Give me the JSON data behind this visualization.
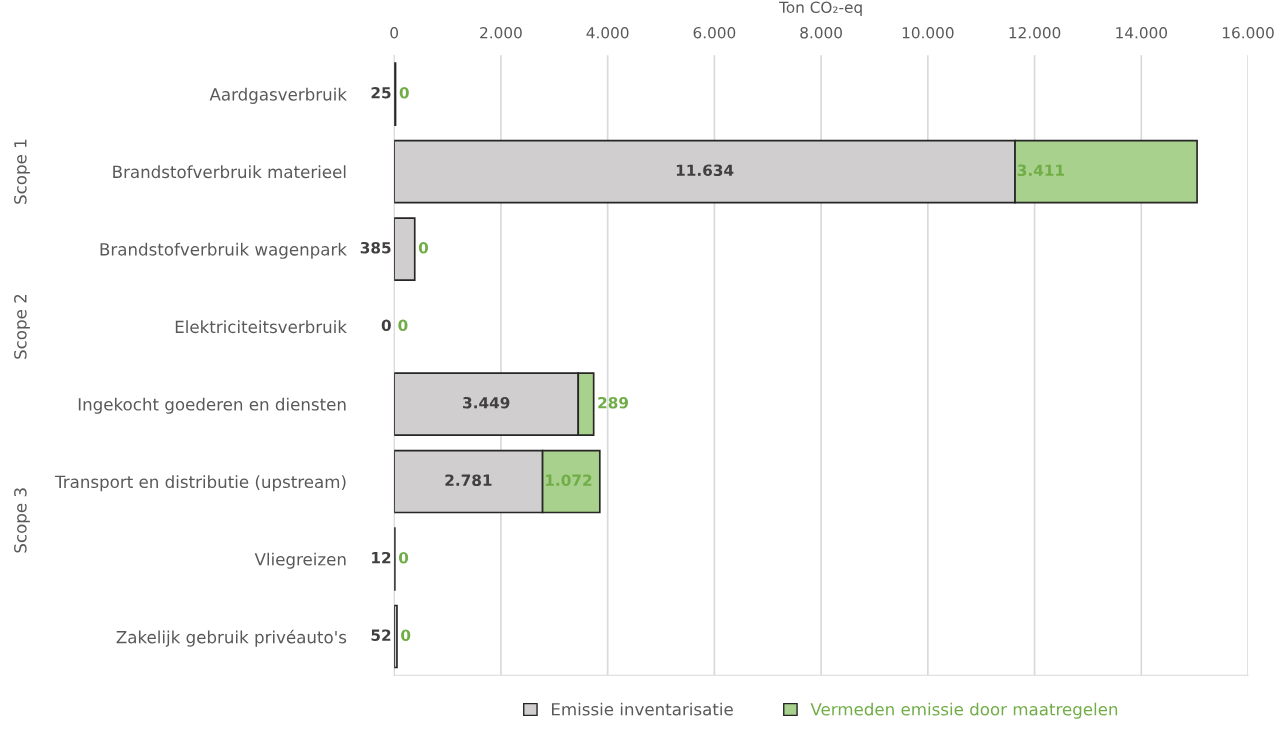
{
  "chart_data": {
    "type": "bar",
    "orientation": "horizontal",
    "stacked": true,
    "xlabel": "Ton CO₂-eq",
    "categories": [
      "Aardgasverbruik",
      "Brandstofverbruik materieel",
      "Brandstofverbruik wagenpark",
      "Elektriciteitsverbruik",
      "Ingekocht goederen en diensten",
      "Transport en distributie (upstream)",
      "Vliegreizen",
      "Zakelijk gebruik privéauto's"
    ],
    "series": [
      {
        "name": "Emissie inventarisatie",
        "color": "#d0cece",
        "values": [
          25,
          11634,
          385,
          0,
          3449,
          2781,
          12,
          52
        ],
        "value_labels": [
          "25",
          "11.634",
          "385",
          "0",
          "3.449",
          "2.781",
          "12",
          "52"
        ]
      },
      {
        "name": "Vermeden emissie door maatregelen",
        "color": "#a9d18e",
        "values": [
          0,
          3411,
          0,
          0,
          289,
          1072,
          0,
          0
        ],
        "value_labels": [
          "0",
          "3.411",
          "0",
          "0",
          "289",
          "1.072",
          "0",
          "0"
        ]
      }
    ],
    "xlim": [
      0,
      16000
    ],
    "xticks": [
      0,
      {
        "value": 2000,
        "label": "2.000"
      },
      {
        "value": 4000,
        "label": "4.000"
      },
      {
        "value": 6000,
        "label": "6.000"
      },
      {
        "value": 8000,
        "label": "8.000"
      },
      {
        "value": 10000,
        "label": "10.000"
      },
      {
        "value": 12000,
        "label": "12.000"
      },
      {
        "value": 14000,
        "label": "14.000"
      },
      {
        "value": 16000,
        "label": "16.000"
      }
    ],
    "grid": "x",
    "legend": "bottom",
    "annotations": [
      "Scope 1",
      "Scope 2",
      "Scope 3"
    ]
  }
}
